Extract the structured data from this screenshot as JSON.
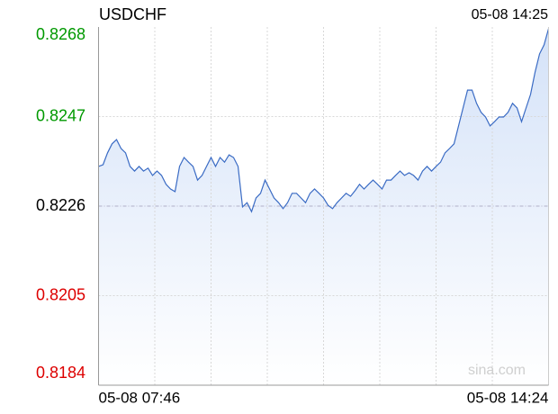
{
  "chart_data": {
    "type": "line",
    "title": "USDCHF",
    "time": "05-08 14:25",
    "watermark": "sina.com",
    "categories": [
      "05-08 07:46",
      null,
      null,
      null,
      null,
      null,
      null,
      null,
      null,
      null,
      null,
      null,
      null,
      null,
      null,
      null,
      null,
      null,
      null,
      null,
      null,
      null,
      null,
      null,
      null,
      null,
      null,
      null,
      null,
      null,
      null,
      null,
      null,
      null,
      null,
      null,
      null,
      null,
      null,
      null,
      null,
      null,
      null,
      null,
      null,
      null,
      null,
      null,
      null,
      null,
      null,
      null,
      null,
      null,
      null,
      null,
      null,
      null,
      null,
      null,
      null,
      null,
      null,
      null,
      null,
      null,
      null,
      null,
      null,
      null,
      null,
      null,
      null,
      null,
      null,
      null,
      null,
      null,
      null,
      null,
      null,
      null,
      null,
      null,
      null,
      null,
      null,
      null,
      null,
      null,
      null,
      null,
      null,
      null,
      null,
      null,
      null,
      null,
      null,
      null,
      "05-08 14:24"
    ],
    "series": [
      {
        "name": "USDCHF",
        "color": "#3a6bc4",
        "values": [
          0.82353,
          0.82357,
          0.82385,
          0.82406,
          0.82416,
          0.82395,
          0.82385,
          0.82353,
          0.82342,
          0.82353,
          0.82342,
          0.82349,
          0.82332,
          0.82342,
          0.82332,
          0.82311,
          0.823,
          0.82294,
          0.82353,
          0.82374,
          0.82363,
          0.82353,
          0.82321,
          0.82332,
          0.82353,
          0.82374,
          0.82353,
          0.82374,
          0.82363,
          0.8238,
          0.82374,
          0.82353,
          0.82258,
          0.82268,
          0.82247,
          0.82279,
          0.8229,
          0.82321,
          0.823,
          0.82279,
          0.82268,
          0.82254,
          0.82268,
          0.8229,
          0.8229,
          0.82279,
          0.82268,
          0.8229,
          0.823,
          0.8229,
          0.82279,
          0.82262,
          0.82254,
          0.82268,
          0.82279,
          0.8229,
          0.82283,
          0.82296,
          0.82311,
          0.823,
          0.82311,
          0.82321,
          0.82311,
          0.823,
          0.82321,
          0.82321,
          0.82332,
          0.82342,
          0.82332,
          0.82338,
          0.82332,
          0.82321,
          0.82342,
          0.82353,
          0.82342,
          0.82353,
          0.82363,
          0.82385,
          0.82395,
          0.82406,
          0.82448,
          0.8249,
          0.82532,
          0.82532,
          0.82501,
          0.8248,
          0.82469,
          0.82448,
          0.82458,
          0.82469,
          0.82469,
          0.8248,
          0.82501,
          0.8249,
          0.82458,
          0.8249,
          0.82522,
          0.82574,
          0.82617,
          0.82638,
          0.82676
        ]
      }
    ],
    "ylim": [
      0.8184,
      0.8268
    ],
    "yticks": [
      0.8184,
      0.8205,
      0.8226,
      0.8247,
      0.8268
    ],
    "up_color": "#009900",
    "down_color": "#dd0000",
    "grid": true
  }
}
